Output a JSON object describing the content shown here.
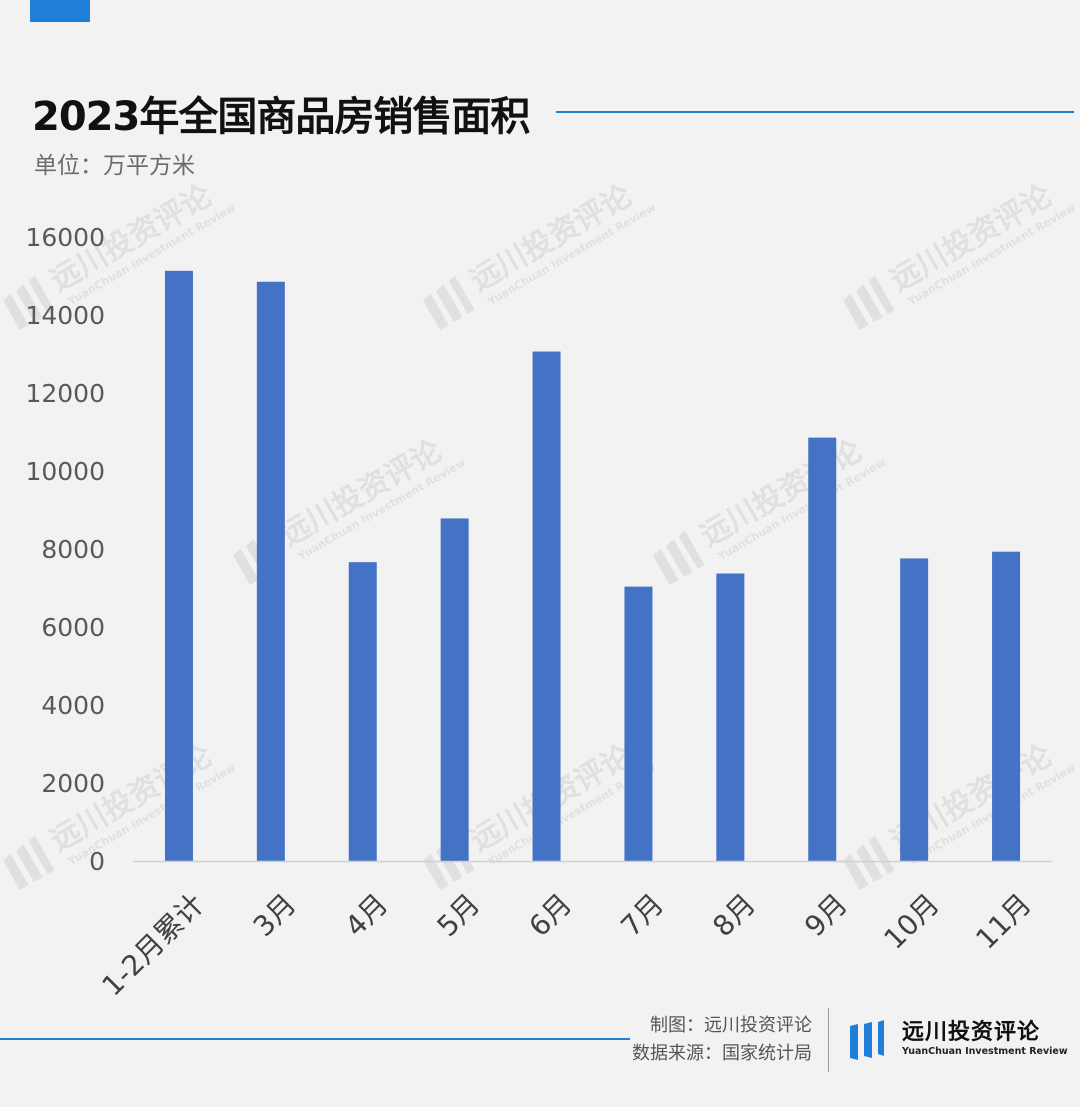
{
  "page": {
    "title": "2023年全国商品房销售面积",
    "unit": "单位：万平方米"
  },
  "watermark": {
    "name": "远川投资评论",
    "name_en": "YuanChuan Investment Review"
  },
  "footer": {
    "credit": "制图：远川投资评论",
    "source": "数据来源：国家统计局",
    "brand_name": "远川投资评论",
    "brand_en": "YuanChuan Investment Review"
  },
  "colors": {
    "bar": "#4472c4",
    "accent": "#1f7fd8",
    "background": "#f2f2f2"
  },
  "chart_data": {
    "type": "bar",
    "title": "2023年全国商品房销售面积",
    "ylabel": "单位：万平方米",
    "xlabel": "",
    "categories": [
      "1-2月累计",
      "3月",
      "4月",
      "5月",
      "6月",
      "7月",
      "8月",
      "9月",
      "10月",
      "11月"
    ],
    "values": [
      15133,
      14852,
      7662,
      8784,
      13063,
      7035,
      7372,
      10856,
      7758,
      7931
    ],
    "ylim": [
      0,
      16000
    ],
    "yticks": [
      "0",
      "2000",
      "4000",
      "6000",
      "8000",
      "10000",
      "12000",
      "14000",
      "16000"
    ],
    "grid": false,
    "legend": "none"
  }
}
